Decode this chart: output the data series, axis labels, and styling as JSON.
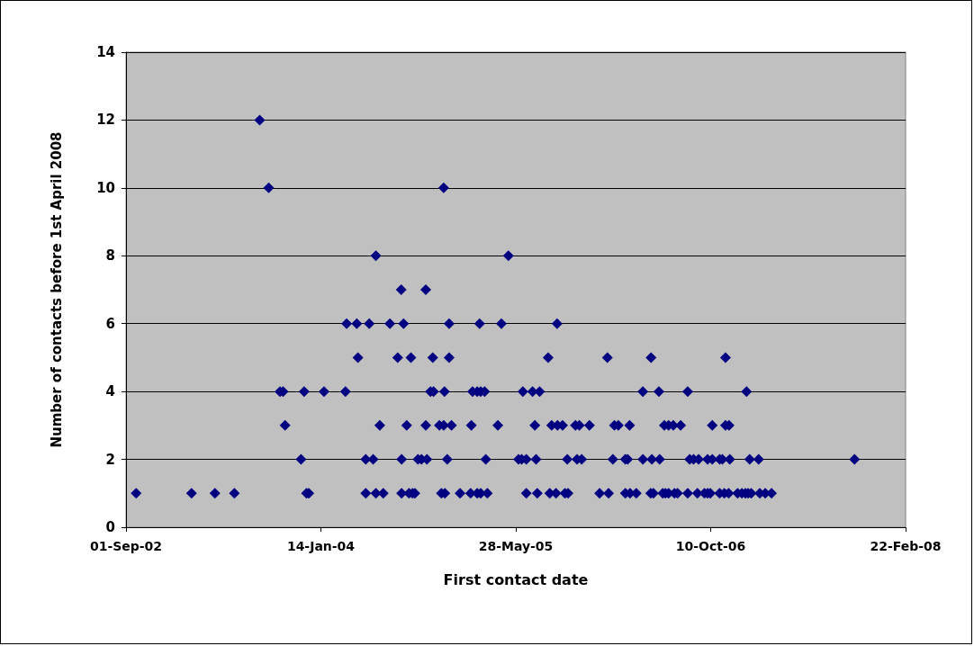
{
  "chart_data": {
    "type": "scatter",
    "xlabel": "First contact date",
    "ylabel": "Number of contacts before 1st April 2008",
    "xlim": [
      "2002-09-01",
      "2008-02-22"
    ],
    "xticks": [
      {
        "value": "2002-09-01",
        "label": "01-Sep-02"
      },
      {
        "value": "2004-01-14",
        "label": "14-Jan-04"
      },
      {
        "value": "2005-05-28",
        "label": "28-May-05"
      },
      {
        "value": "2006-10-10",
        "label": "10-Oct-06"
      },
      {
        "value": "2008-02-22",
        "label": "22-Feb-08"
      }
    ],
    "ylim": [
      0,
      14
    ],
    "yticks": [
      0,
      2,
      4,
      6,
      8,
      10,
      12,
      14
    ],
    "grid": "y",
    "marker": "diamond",
    "color": "#000080",
    "x": [
      "2002-09-27",
      "2003-02-16",
      "2003-04-17",
      "2003-06-06",
      "2003-12-08",
      "2003-12-14",
      "2004-05-08",
      "2004-06-03",
      "2004-06-22",
      "2004-08-08",
      "2004-08-27",
      "2004-09-05",
      "2004-09-11",
      "2004-11-18",
      "2004-11-27",
      "2005-01-05",
      "2005-02-01",
      "2005-02-18",
      "2005-02-27",
      "2005-03-16",
      "2005-06-24",
      "2005-07-22",
      "2005-08-23",
      "2005-09-08",
      "2005-10-01",
      "2005-10-09",
      "2005-12-29",
      "2006-01-21",
      "2006-03-05",
      "2006-03-17",
      "2006-04-02",
      "2006-05-09",
      "2006-05-16",
      "2006-06-09",
      "2006-06-16",
      "2006-06-24",
      "2006-07-09",
      "2006-07-17",
      "2006-08-12",
      "2006-09-06",
      "2006-09-24",
      "2006-10-02",
      "2006-10-09",
      "2006-11-02",
      "2006-11-14",
      "2006-11-25",
      "2006-12-18",
      "2006-12-29",
      "2007-01-07",
      "2007-01-14",
      "2007-01-22",
      "2007-02-13",
      "2007-02-27",
      "2007-03-15",
      "2003-11-24",
      "2004-05-08",
      "2004-05-27",
      "2004-08-08",
      "2004-09-19",
      "2004-09-28",
      "2004-10-12",
      "2004-12-03",
      "2005-03-12",
      "2005-06-04",
      "2005-06-12",
      "2005-06-24",
      "2005-07-19",
      "2005-10-07",
      "2005-11-01",
      "2005-11-13",
      "2006-02-01",
      "2006-03-05",
      "2006-03-11",
      "2006-04-19",
      "2006-05-12",
      "2006-06-01",
      "2006-08-17",
      "2006-08-27",
      "2006-09-09",
      "2006-10-02",
      "2006-10-14",
      "2006-11-02",
      "2006-11-09",
      "2006-11-28",
      "2007-01-18",
      "2007-02-10",
      "2007-10-14",
      "2003-10-14",
      "2004-06-13",
      "2004-08-21",
      "2004-10-09",
      "2004-11-13",
      "2004-11-24",
      "2004-12-14",
      "2005-02-03",
      "2005-04-12",
      "2005-07-16",
      "2005-08-28",
      "2005-09-12",
      "2005-09-25",
      "2005-10-28",
      "2005-11-07",
      "2005-12-03",
      "2006-02-05",
      "2006-02-15",
      "2006-03-16",
      "2006-06-13",
      "2006-06-24",
      "2006-07-06",
      "2006-07-25",
      "2006-10-14",
      "2006-11-17",
      "2006-11-26",
      "2003-10-01",
      "2003-10-09",
      "2003-12-02",
      "2004-01-22",
      "2004-03-17",
      "2004-10-21",
      "2004-10-29",
      "2004-11-26",
      "2005-02-06",
      "2005-02-18",
      "2005-02-27",
      "2005-03-09",
      "2005-06-15",
      "2005-07-10",
      "2005-07-28",
      "2006-04-19",
      "2006-05-30",
      "2006-08-12",
      "2007-01-10",
      "2004-04-18",
      "2004-07-29",
      "2004-09-01",
      "2004-10-27",
      "2004-12-08",
      "2005-08-19",
      "2006-01-18",
      "2006-05-10",
      "2006-11-17",
      "2004-03-20",
      "2004-04-15",
      "2004-05-17",
      "2004-07-09",
      "2004-08-13",
      "2004-12-08",
      "2005-02-24",
      "2005-04-21",
      "2005-09-11",
      "2004-08-07",
      "2004-10-09",
      "2004-06-03",
      "2005-05-09",
      "2003-09-02",
      "2004-11-24",
      "2003-08-10"
    ],
    "values": [
      1,
      1,
      1,
      1,
      1,
      1,
      1,
      1,
      1,
      1,
      1,
      1,
      1,
      1,
      1,
      1,
      1,
      1,
      1,
      1,
      1,
      1,
      1,
      1,
      1,
      1,
      1,
      1,
      1,
      1,
      1,
      1,
      1,
      1,
      1,
      1,
      1,
      1,
      1,
      1,
      1,
      1,
      1,
      1,
      1,
      1,
      1,
      1,
      1,
      1,
      1,
      1,
      1,
      1,
      2,
      2,
      2,
      2,
      2,
      2,
      2,
      2,
      2,
      2,
      2,
      2,
      2,
      2,
      2,
      2,
      2,
      2,
      2,
      2,
      2,
      2,
      2,
      2,
      2,
      2,
      2,
      2,
      2,
      2,
      2,
      2,
      2,
      3,
      3,
      3,
      3,
      3,
      3,
      3,
      3,
      3,
      3,
      3,
      3,
      3,
      3,
      3,
      3,
      3,
      3,
      3,
      3,
      3,
      3,
      3,
      3,
      3,
      3,
      4,
      4,
      4,
      4,
      4,
      4,
      4,
      4,
      4,
      4,
      4,
      4,
      4,
      4,
      4,
      4,
      4,
      4,
      4,
      5,
      5,
      5,
      5,
      5,
      5,
      5,
      5,
      5,
      6,
      6,
      6,
      6,
      6,
      6,
      6,
      6,
      6,
      7,
      7,
      8,
      8,
      10,
      10,
      12
    ]
  }
}
